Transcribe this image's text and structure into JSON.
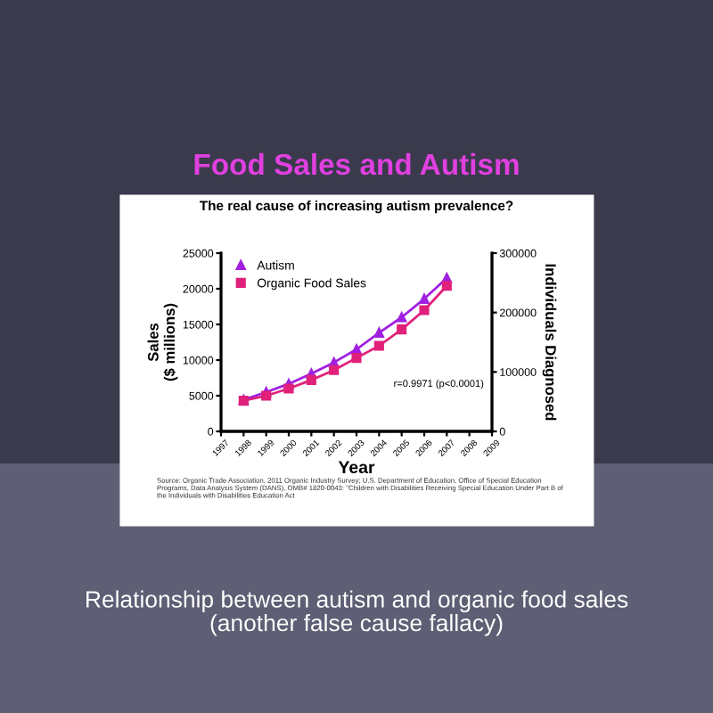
{
  "chart_data": {
    "type": "line",
    "title": "Food Sales and Autism",
    "subtitle": "The real cause of increasing autism prevalence?",
    "xlabel": "Year",
    "ylabel": "Sales\n($ millions)",
    "y2label": "Individuals Diagnosed",
    "x": [
      1998,
      1999,
      2000,
      2001,
      2002,
      2003,
      2004,
      2005,
      2006,
      2007
    ],
    "series": [
      {
        "name": "Autism",
        "color": "#a020e0",
        "axis": "y2",
        "marker": "triangle",
        "values": [
          53000,
          66000,
          80000,
          97000,
          116000,
          138000,
          166000,
          192000,
          223000,
          258000
        ]
      },
      {
        "name": "Organic Food Sales",
        "color": "#e0207a",
        "marker": "square",
        "values": [
          4300,
          5000,
          6000,
          7200,
          8600,
          10300,
          12000,
          14300,
          17000,
          20400
        ]
      }
    ],
    "xlim": [
      1997,
      2009
    ],
    "xticks": [
      1997,
      1998,
      1999,
      2000,
      2001,
      2002,
      2003,
      2004,
      2005,
      2006,
      2007,
      2008,
      2009
    ],
    "ylim": [
      0,
      25000
    ],
    "yticks": [
      0,
      5000,
      10000,
      15000,
      20000,
      25000
    ],
    "y2lim": [
      0,
      300000
    ],
    "y2ticks": [
      0,
      100000,
      200000,
      300000
    ],
    "legend": "top left",
    "grid": false,
    "line_style": "solid",
    "annotations": [
      "r=0.9971 (p<0.0001)",
      "Source: Organic Trade Association, 2011 Organic Industry Survey; U.S. Department of Education, Office of Special Education Programs, Data Analysis System (DANS), OMB# 1820-0043: \"Children with Disabilities Receiving Special Education Under Part B of the Individuals with Disabilities Education Act",
      "Relationship between autism and organic food sales\n(another false cause fallacy)"
    ]
  }
}
